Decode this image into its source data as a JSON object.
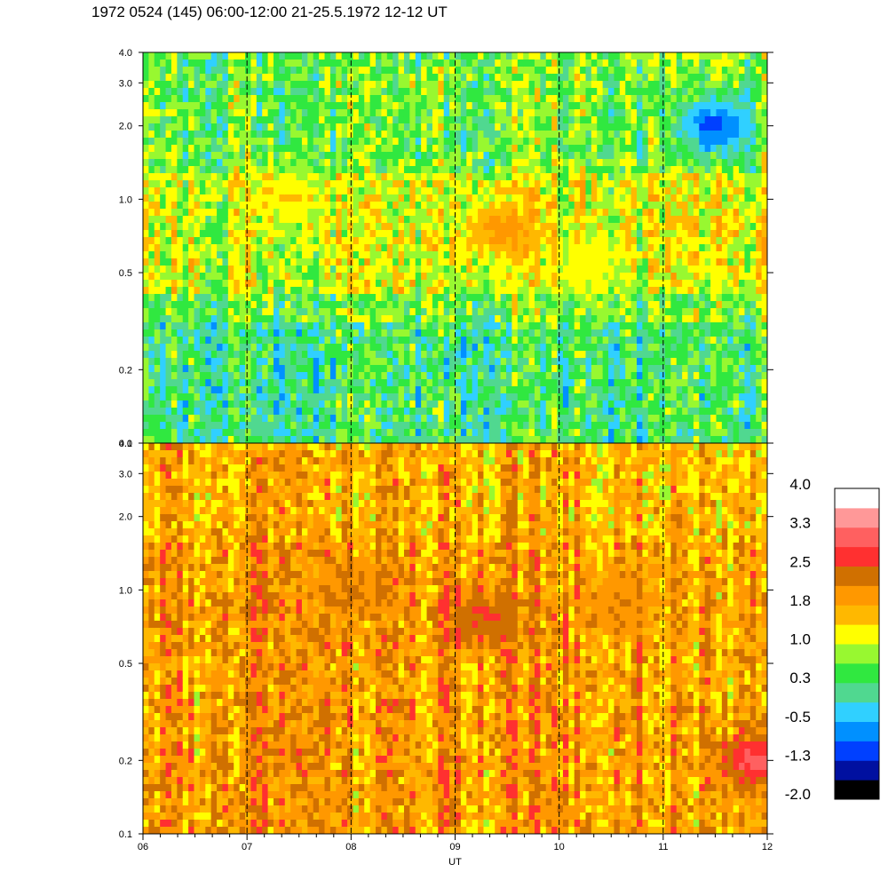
{
  "title": "1972 0524 (145) 06:00-12:00 21-25.5.1972  12-12 UT",
  "chart_data": {
    "type": "heatmap",
    "xlabel": "UT",
    "x_ticks": [
      "06",
      "07",
      "08",
      "09",
      "10",
      "11",
      "12"
    ],
    "x_range": [
      6,
      12
    ],
    "y_scale": "log",
    "y_range": [
      0.1,
      4.0
    ],
    "y_ticks": [
      {
        "value": 4.0,
        "label": "4.0"
      },
      {
        "value": 3.0,
        "label": "3.0"
      },
      {
        "value": 2.0,
        "label": "2.0"
      },
      {
        "value": 1.0,
        "label": "1.0"
      },
      {
        "value": 0.5,
        "label": "0.5"
      },
      {
        "value": 0.2,
        "label": "0.2"
      },
      {
        "value": 0.1,
        "label": "0.1"
      }
    ],
    "hour_markers": [
      7,
      8,
      9,
      10,
      11
    ],
    "panels": [
      {
        "position": "top",
        "dominant_level": 0.6,
        "features": [
          {
            "x": 9.45,
            "y": 0.75,
            "level": 1.9
          },
          {
            "x": 7.4,
            "y": 1.0,
            "level": 1.3
          },
          {
            "x": 10.3,
            "y": 0.55,
            "level": 1.2
          },
          {
            "x": 11.5,
            "y": 2.0,
            "level": -1.0
          }
        ]
      },
      {
        "position": "bottom",
        "dominant_level": 1.9,
        "features": [
          {
            "x": 9.3,
            "y": 0.75,
            "level": 2.6
          },
          {
            "x": 8.0,
            "y": 1.0,
            "level": 2.2
          },
          {
            "x": 10.6,
            "y": 0.9,
            "level": 2.1
          },
          {
            "x": 11.9,
            "y": 0.2,
            "level": 3.0
          }
        ]
      }
    ],
    "colorbar": {
      "colors": [
        "#000000",
        "#0010a0",
        "#0040ff",
        "#0090ff",
        "#30d0ff",
        "#50d890",
        "#30e840",
        "#98f830",
        "#ffff00",
        "#ffb800",
        "#ff9800",
        "#d07000",
        "#ff3030",
        "#ff6060",
        "#ff9898",
        "#ffffff"
      ],
      "labels": [
        "4.0",
        "3.3",
        "2.5",
        "1.8",
        "1.0",
        "0.3",
        "-0.5",
        "-1.3",
        "-2.0"
      ],
      "range": [
        -2.0,
        4.0
      ]
    }
  }
}
